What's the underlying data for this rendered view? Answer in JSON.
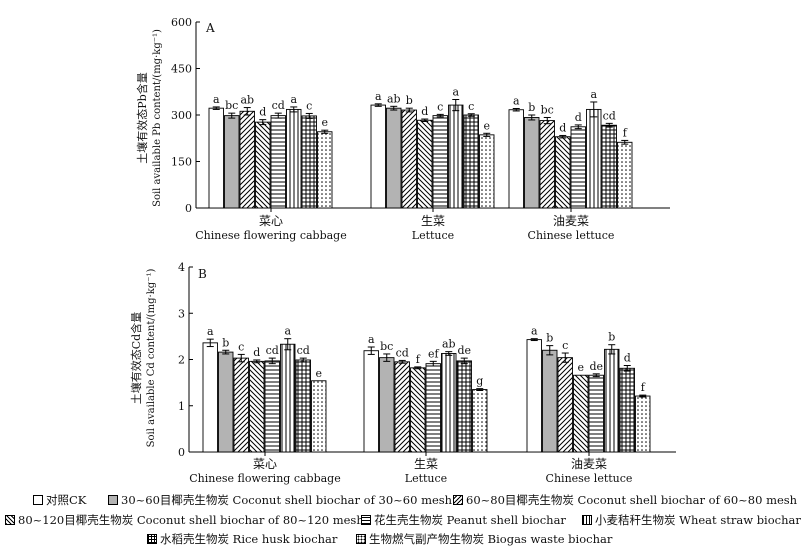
{
  "series": [
    {
      "key": "ck",
      "name": "对照CK",
      "fill": "#ffffff",
      "pattern": "none"
    },
    {
      "key": "c3060",
      "name": "30~60目椰壳生物炭 Coconut shell biochar of 30~60 mesh",
      "fill": "#b3b3b3",
      "pattern": "solid"
    },
    {
      "key": "c6080",
      "name": "60~80目椰壳生物炭 Coconut shell biochar of 60~80 mesh",
      "fill": "#ffffff",
      "pattern": "diag-right"
    },
    {
      "key": "c80120",
      "name": "80~120目椰壳生物炭 Coconut shell biochar of 80~120 mesh",
      "fill": "#ffffff",
      "pattern": "diag-left"
    },
    {
      "key": "peanut",
      "name": "花生壳生物炭 Peanut shell biochar",
      "fill": "#ffffff",
      "pattern": "horizontal"
    },
    {
      "key": "wheat",
      "name": "小麦秸秆生物炭 Wheat straw biochar",
      "fill": "#ffffff",
      "pattern": "vertical"
    },
    {
      "key": "rice",
      "name": "水稻壳生物炭 Rice husk biochar",
      "fill": "#ffffff",
      "pattern": "grid"
    },
    {
      "key": "biogas",
      "name": "生物燃气副产物生物炭 Biogas waste biochar",
      "fill": "#ffffff",
      "pattern": "dots"
    }
  ],
  "chart_data": [
    {
      "type": "bar",
      "panel": "A",
      "ylabel_cn": "土壤有效态Pb含量",
      "ylabel_en": "Soil available Pb content/(mg·kg⁻¹)",
      "ylim": [
        0,
        600
      ],
      "yticks": [
        0,
        150,
        300,
        450,
        600
      ],
      "categories": [
        {
          "cn": "菜心",
          "en": "Chinese flowering cabbage"
        },
        {
          "cn": "生菜",
          "en": "Lettuce"
        },
        {
          "cn": "油麦菜",
          "en": "Chinese lettuce"
        }
      ],
      "groups": [
        {
          "values": [
            322,
            298,
            312,
            277,
            298,
            318,
            297,
            246
          ],
          "errors": [
            4,
            8,
            12,
            8,
            8,
            8,
            8,
            5
          ],
          "letters": [
            "a",
            "bc",
            "ab",
            "d",
            "cd",
            "a",
            "c",
            "e"
          ]
        },
        {
          "values": [
            332,
            322,
            316,
            283,
            298,
            332,
            300,
            236
          ],
          "errors": [
            4,
            6,
            6,
            4,
            4,
            18,
            4,
            5
          ],
          "letters": [
            "a",
            "ab",
            "b",
            "d",
            "c",
            "a",
            "c",
            "e"
          ]
        },
        {
          "values": [
            317,
            292,
            282,
            230,
            262,
            318,
            267,
            212
          ],
          "errors": [
            4,
            8,
            10,
            4,
            6,
            24,
            6,
            6
          ],
          "letters": [
            "a",
            "b",
            "bc",
            "d",
            "d",
            "a",
            "cd",
            "f"
          ]
        }
      ]
    },
    {
      "type": "bar",
      "panel": "B",
      "ylabel_cn": "土壤有效态Cd含量",
      "ylabel_en": "Soil available Cd content/(mg·kg⁻¹)",
      "ylim": [
        0,
        4
      ],
      "yticks": [
        0,
        1,
        2,
        3,
        4
      ],
      "categories": [
        {
          "cn": "菜心",
          "en": "Chinese flowering cabbage"
        },
        {
          "cn": "生菜",
          "en": "Lettuce"
        },
        {
          "cn": "油麦菜",
          "en": "Chinese lettuce"
        }
      ],
      "groups": [
        {
          "values": [
            2.36,
            2.16,
            2.03,
            1.96,
            1.97,
            2.33,
            1.99,
            1.54
          ],
          "errors": [
            0.08,
            0.04,
            0.08,
            0.03,
            0.06,
            0.12,
            0.04,
            0.0
          ],
          "letters": [
            "a",
            "b",
            "c",
            "d",
            "cd",
            "a",
            "cd",
            "e"
          ]
        },
        {
          "values": [
            2.19,
            2.04,
            1.95,
            1.82,
            1.91,
            2.13,
            1.97,
            1.35
          ],
          "errors": [
            0.08,
            0.08,
            0.03,
            0.02,
            0.05,
            0.04,
            0.06,
            0.02
          ],
          "letters": [
            "a",
            "bc",
            "cd",
            "f",
            "ef",
            "ab",
            "de",
            "g"
          ]
        },
        {
          "values": [
            2.43,
            2.2,
            2.04,
            1.66,
            1.66,
            2.22,
            1.81,
            1.21
          ],
          "errors": [
            0.02,
            0.1,
            0.1,
            0.0,
            0.03,
            0.1,
            0.06,
            0.02
          ],
          "letters": [
            "a",
            "b",
            "c",
            "e",
            "de",
            "b",
            "d",
            "f"
          ]
        }
      ]
    }
  ]
}
